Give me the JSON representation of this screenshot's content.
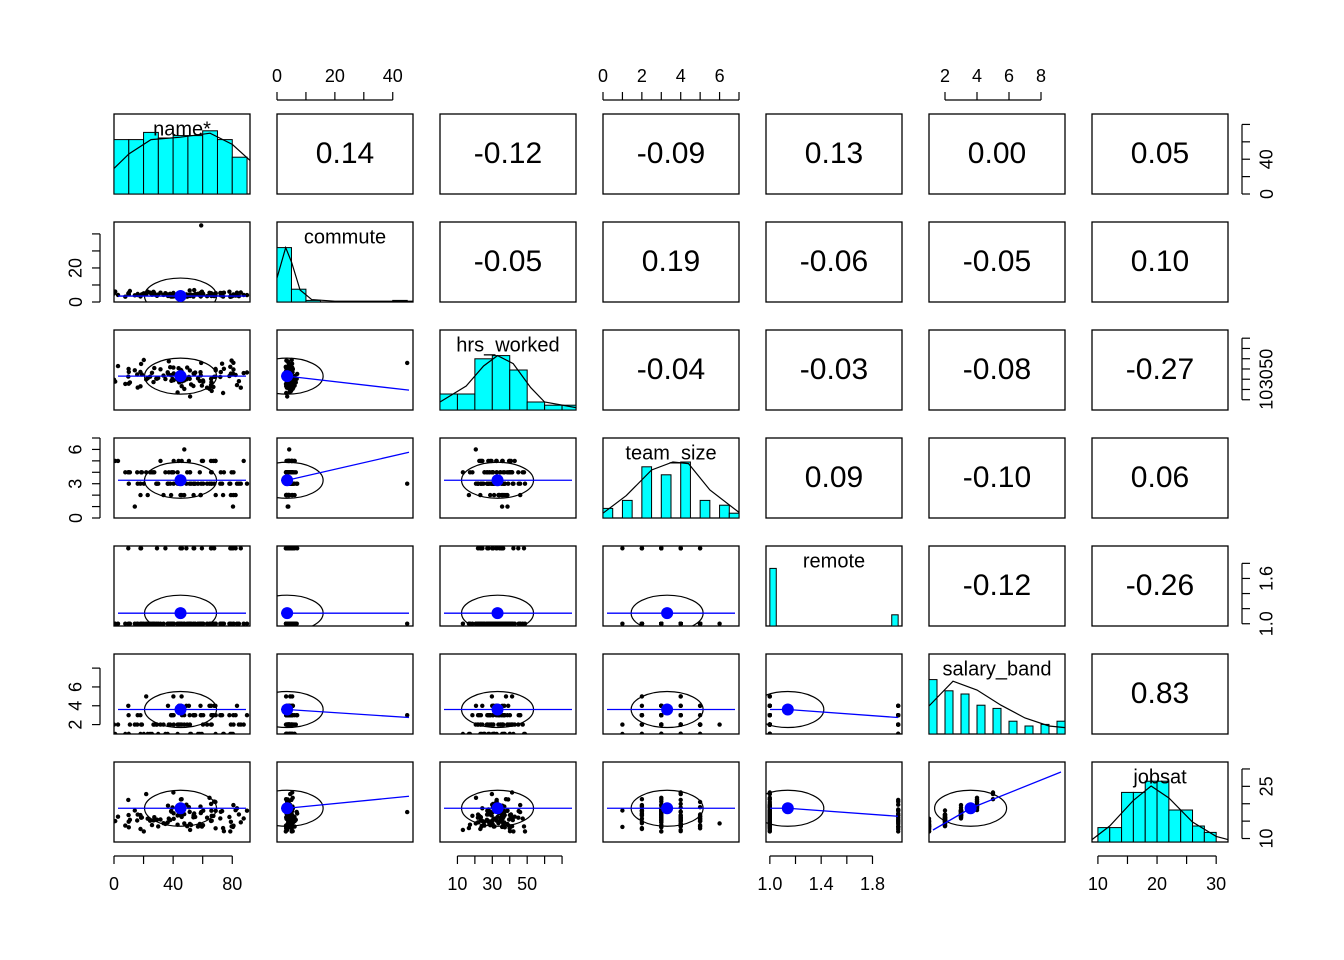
{
  "chart_data": {
    "type": "scatter_matrix",
    "variables": [
      "name*",
      "commute",
      "hrs_worked",
      "team_size",
      "remote",
      "salary_band",
      "jobsat"
    ],
    "ranges": [
      [
        0,
        92
      ],
      [
        0,
        47
      ],
      [
        0,
        78
      ],
      [
        0,
        7
      ],
      [
        0.97,
        2.03
      ],
      [
        1,
        9.5
      ],
      [
        9,
        32
      ]
    ],
    "axis_ticks": {
      "top": [
        {
          "col": 1,
          "ticks": [
            0,
            20,
            40
          ],
          "minor": [
            0,
            10,
            20,
            30,
            40
          ]
        },
        {
          "col": 3,
          "ticks": [
            0,
            2,
            4,
            6
          ],
          "minor": [
            0,
            1,
            2,
            3,
            4,
            5,
            6,
            7
          ]
        },
        {
          "col": 5,
          "ticks": [
            2,
            4,
            6,
            8
          ],
          "minor": [
            2,
            4,
            6,
            8
          ]
        }
      ],
      "bottom": [
        {
          "col": 0,
          "ticks": [
            0,
            40,
            80
          ],
          "minor": [
            0,
            20,
            40,
            60,
            80
          ]
        },
        {
          "col": 2,
          "ticks": [
            10,
            30,
            50
          ],
          "minor": [
            10,
            20,
            30,
            40,
            50,
            60,
            70
          ]
        },
        {
          "col": 4,
          "ticks": [
            1.0,
            1.4,
            1.8
          ],
          "minor": [
            1.0,
            1.2,
            1.4,
            1.6,
            1.8
          ]
        },
        {
          "col": 6,
          "ticks": [
            10,
            20,
            30
          ],
          "minor": [
            10,
            15,
            20,
            25,
            30
          ]
        }
      ],
      "left": [
        {
          "row": 1,
          "ticks": [
            0,
            20
          ],
          "minor": [
            0,
            10,
            20,
            30,
            40
          ]
        },
        {
          "row": 3,
          "ticks": [
            0,
            3,
            6
          ],
          "minor": [
            0,
            1,
            2,
            3,
            4,
            5,
            6,
            7
          ]
        },
        {
          "row": 5,
          "ticks": [
            2,
            4,
            6
          ],
          "minor": [
            2,
            4,
            6,
            8
          ]
        }
      ],
      "right": [
        {
          "row": 0,
          "ticks": [
            0,
            40
          ],
          "minor": [
            0,
            20,
            40,
            60,
            80
          ]
        },
        {
          "row": 2,
          "ticks": [
            10,
            30,
            50
          ],
          "minor": [
            10,
            20,
            30,
            40,
            50,
            60,
            70
          ]
        },
        {
          "row": 4,
          "ticks": [
            1.0,
            1.6
          ],
          "minor": [
            1.0,
            1.2,
            1.4,
            1.6,
            1.8
          ]
        },
        {
          "row": 6,
          "ticks": [
            10,
            25
          ],
          "minor": [
            10,
            15,
            20,
            25,
            30
          ]
        }
      ]
    },
    "correlations": [
      {
        "row": 0,
        "col": 1,
        "value": "0.14"
      },
      {
        "row": 0,
        "col": 2,
        "value": "-0.12"
      },
      {
        "row": 0,
        "col": 3,
        "value": "-0.09"
      },
      {
        "row": 0,
        "col": 4,
        "value": "0.13"
      },
      {
        "row": 0,
        "col": 5,
        "value": "0.00"
      },
      {
        "row": 0,
        "col": 6,
        "value": "0.05"
      },
      {
        "row": 1,
        "col": 2,
        "value": "-0.05"
      },
      {
        "row": 1,
        "col": 3,
        "value": "0.19"
      },
      {
        "row": 1,
        "col": 4,
        "value": "-0.06"
      },
      {
        "row": 1,
        "col": 5,
        "value": "-0.05"
      },
      {
        "row": 1,
        "col": 6,
        "value": "0.10"
      },
      {
        "row": 2,
        "col": 3,
        "value": "-0.04"
      },
      {
        "row": 2,
        "col": 4,
        "value": "-0.03"
      },
      {
        "row": 2,
        "col": 5,
        "value": "-0.08"
      },
      {
        "row": 2,
        "col": 6,
        "value": "-0.27"
      },
      {
        "row": 3,
        "col": 4,
        "value": "0.09"
      },
      {
        "row": 3,
        "col": 5,
        "value": "-0.10"
      },
      {
        "row": 3,
        "col": 6,
        "value": "0.06"
      },
      {
        "row": 4,
        "col": 5,
        "value": "-0.12"
      },
      {
        "row": 4,
        "col": 6,
        "value": "-0.26"
      },
      {
        "row": 5,
        "col": 6,
        "value": "0.83"
      }
    ],
    "histograms": [
      {
        "var": 0,
        "breaks": [
          0,
          10,
          20,
          30,
          40,
          50,
          60,
          70,
          80,
          90
        ],
        "heights": [
          0.68,
          0.68,
          0.77,
          0.7,
          0.73,
          0.73,
          0.79,
          0.68,
          0.46
        ],
        "density": [
          [
            0,
            0.32
          ],
          [
            10,
            0.5
          ],
          [
            25,
            0.68
          ],
          [
            45,
            0.71
          ],
          [
            65,
            0.76
          ],
          [
            80,
            0.62
          ],
          [
            92,
            0.42
          ]
        ]
      },
      {
        "var": 1,
        "breaks": [
          0,
          5,
          10,
          15,
          20,
          25,
          30,
          35,
          40,
          45
        ],
        "heights": [
          0.68,
          0.16,
          0.02,
          0,
          0,
          0,
          0,
          0,
          0.02
        ],
        "density": [
          [
            0,
            0.3
          ],
          [
            3,
            0.68
          ],
          [
            5,
            0.5
          ],
          [
            8,
            0.15
          ],
          [
            12,
            0.03
          ],
          [
            20,
            0.01
          ],
          [
            47,
            0.01
          ]
        ]
      },
      {
        "var": 2,
        "breaks": [
          0,
          10,
          20,
          30,
          40,
          50,
          60,
          70,
          78
        ],
        "heights": [
          0.2,
          0.2,
          0.64,
          0.68,
          0.5,
          0.1,
          0.06,
          0.06
        ],
        "density": [
          [
            0,
            0.1
          ],
          [
            15,
            0.3
          ],
          [
            25,
            0.55
          ],
          [
            33,
            0.68
          ],
          [
            42,
            0.58
          ],
          [
            52,
            0.28
          ],
          [
            60,
            0.1
          ],
          [
            78,
            0.03
          ]
        ]
      },
      {
        "var": 3,
        "breaks": [
          0,
          0.5,
          1,
          1.5,
          2,
          2.5,
          3,
          3.5,
          4,
          4.5,
          5,
          5.5,
          6,
          6.5,
          7
        ],
        "heights": [
          0.12,
          0,
          0.22,
          0,
          0.64,
          0,
          0.54,
          0,
          0.7,
          0,
          0.22,
          0,
          0.16,
          0.06
        ],
        "density": [
          [
            0,
            0.06
          ],
          [
            1.2,
            0.28
          ],
          [
            2.5,
            0.6
          ],
          [
            3.6,
            0.7
          ],
          [
            4.4,
            0.68
          ],
          [
            5.5,
            0.35
          ],
          [
            7,
            0.07
          ]
        ]
      },
      {
        "var": 4,
        "breaks": [
          1.0,
          1.05,
          1.95,
          2.0
        ],
        "heights": [
          0.72,
          0,
          0.14
        ],
        "density": []
      },
      {
        "var": 5,
        "breaks": [
          1,
          1.5,
          2,
          2.5,
          3,
          3.5,
          4,
          4.5,
          5,
          5.5,
          6,
          6.5,
          7,
          7.5,
          8,
          8.5,
          9,
          9.5
        ],
        "heights": [
          0.68,
          0,
          0.54,
          0,
          0.5,
          0,
          0.36,
          0,
          0.32,
          0,
          0.16,
          0,
          0.1,
          0,
          0.12,
          0,
          0.16
        ],
        "density": [
          [
            1,
            0.35
          ],
          [
            2.5,
            0.66
          ],
          [
            4,
            0.55
          ],
          [
            5.5,
            0.36
          ],
          [
            7,
            0.2
          ],
          [
            8.5,
            0.1
          ],
          [
            9.5,
            0.08
          ]
        ]
      },
      {
        "var": 6,
        "breaks": [
          10,
          12,
          14,
          16,
          18,
          20,
          22,
          24,
          26,
          28,
          30
        ],
        "heights": [
          0.18,
          0.18,
          0.62,
          0.62,
          0.76,
          0.76,
          0.4,
          0.4,
          0.2,
          0.12
        ],
        "density": [
          [
            9,
            0.03
          ],
          [
            12,
            0.2
          ],
          [
            16,
            0.52
          ],
          [
            19,
            0.7
          ],
          [
            22,
            0.55
          ],
          [
            26,
            0.25
          ],
          [
            30,
            0.07
          ],
          [
            32,
            0.03
          ]
        ]
      }
    ]
  }
}
